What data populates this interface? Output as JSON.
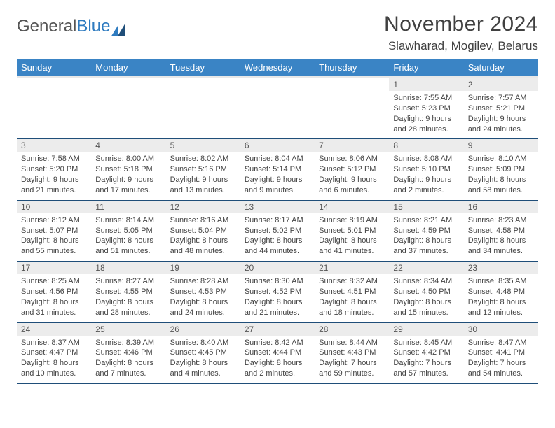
{
  "logo": {
    "text1": "General",
    "text2": "Blue"
  },
  "header": {
    "month": "November 2024",
    "location": "Slawharad, Mogilev, Belarus"
  },
  "colors": {
    "header_bg": "#3a84c5",
    "header_text": "#ffffff",
    "daynum_bg": "#ececec",
    "row_border": "#1f4e79",
    "thead_underline": "#e8e8e8",
    "body_text": "#444444",
    "page_bg": "#ffffff"
  },
  "typography": {
    "month_fontsize": 30,
    "location_fontsize": 17,
    "dayhead_fontsize": 13,
    "daynum_fontsize": 12,
    "cell_fontsize": 11
  },
  "calendar": {
    "type": "table",
    "columns": [
      "Sunday",
      "Monday",
      "Tuesday",
      "Wednesday",
      "Thursday",
      "Friday",
      "Saturday"
    ],
    "weeks": [
      [
        {
          "n": "",
          "sr": "",
          "ss": "",
          "dl": ""
        },
        {
          "n": "",
          "sr": "",
          "ss": "",
          "dl": ""
        },
        {
          "n": "",
          "sr": "",
          "ss": "",
          "dl": ""
        },
        {
          "n": "",
          "sr": "",
          "ss": "",
          "dl": ""
        },
        {
          "n": "",
          "sr": "",
          "ss": "",
          "dl": ""
        },
        {
          "n": "1",
          "sr": "Sunrise: 7:55 AM",
          "ss": "Sunset: 5:23 PM",
          "dl": "Daylight: 9 hours and 28 minutes."
        },
        {
          "n": "2",
          "sr": "Sunrise: 7:57 AM",
          "ss": "Sunset: 5:21 PM",
          "dl": "Daylight: 9 hours and 24 minutes."
        }
      ],
      [
        {
          "n": "3",
          "sr": "Sunrise: 7:58 AM",
          "ss": "Sunset: 5:20 PM",
          "dl": "Daylight: 9 hours and 21 minutes."
        },
        {
          "n": "4",
          "sr": "Sunrise: 8:00 AM",
          "ss": "Sunset: 5:18 PM",
          "dl": "Daylight: 9 hours and 17 minutes."
        },
        {
          "n": "5",
          "sr": "Sunrise: 8:02 AM",
          "ss": "Sunset: 5:16 PM",
          "dl": "Daylight: 9 hours and 13 minutes."
        },
        {
          "n": "6",
          "sr": "Sunrise: 8:04 AM",
          "ss": "Sunset: 5:14 PM",
          "dl": "Daylight: 9 hours and 9 minutes."
        },
        {
          "n": "7",
          "sr": "Sunrise: 8:06 AM",
          "ss": "Sunset: 5:12 PM",
          "dl": "Daylight: 9 hours and 6 minutes."
        },
        {
          "n": "8",
          "sr": "Sunrise: 8:08 AM",
          "ss": "Sunset: 5:10 PM",
          "dl": "Daylight: 9 hours and 2 minutes."
        },
        {
          "n": "9",
          "sr": "Sunrise: 8:10 AM",
          "ss": "Sunset: 5:09 PM",
          "dl": "Daylight: 8 hours and 58 minutes."
        }
      ],
      [
        {
          "n": "10",
          "sr": "Sunrise: 8:12 AM",
          "ss": "Sunset: 5:07 PM",
          "dl": "Daylight: 8 hours and 55 minutes."
        },
        {
          "n": "11",
          "sr": "Sunrise: 8:14 AM",
          "ss": "Sunset: 5:05 PM",
          "dl": "Daylight: 8 hours and 51 minutes."
        },
        {
          "n": "12",
          "sr": "Sunrise: 8:16 AM",
          "ss": "Sunset: 5:04 PM",
          "dl": "Daylight: 8 hours and 48 minutes."
        },
        {
          "n": "13",
          "sr": "Sunrise: 8:17 AM",
          "ss": "Sunset: 5:02 PM",
          "dl": "Daylight: 8 hours and 44 minutes."
        },
        {
          "n": "14",
          "sr": "Sunrise: 8:19 AM",
          "ss": "Sunset: 5:01 PM",
          "dl": "Daylight: 8 hours and 41 minutes."
        },
        {
          "n": "15",
          "sr": "Sunrise: 8:21 AM",
          "ss": "Sunset: 4:59 PM",
          "dl": "Daylight: 8 hours and 37 minutes."
        },
        {
          "n": "16",
          "sr": "Sunrise: 8:23 AM",
          "ss": "Sunset: 4:58 PM",
          "dl": "Daylight: 8 hours and 34 minutes."
        }
      ],
      [
        {
          "n": "17",
          "sr": "Sunrise: 8:25 AM",
          "ss": "Sunset: 4:56 PM",
          "dl": "Daylight: 8 hours and 31 minutes."
        },
        {
          "n": "18",
          "sr": "Sunrise: 8:27 AM",
          "ss": "Sunset: 4:55 PM",
          "dl": "Daylight: 8 hours and 28 minutes."
        },
        {
          "n": "19",
          "sr": "Sunrise: 8:28 AM",
          "ss": "Sunset: 4:53 PM",
          "dl": "Daylight: 8 hours and 24 minutes."
        },
        {
          "n": "20",
          "sr": "Sunrise: 8:30 AM",
          "ss": "Sunset: 4:52 PM",
          "dl": "Daylight: 8 hours and 21 minutes."
        },
        {
          "n": "21",
          "sr": "Sunrise: 8:32 AM",
          "ss": "Sunset: 4:51 PM",
          "dl": "Daylight: 8 hours and 18 minutes."
        },
        {
          "n": "22",
          "sr": "Sunrise: 8:34 AM",
          "ss": "Sunset: 4:50 PM",
          "dl": "Daylight: 8 hours and 15 minutes."
        },
        {
          "n": "23",
          "sr": "Sunrise: 8:35 AM",
          "ss": "Sunset: 4:48 PM",
          "dl": "Daylight: 8 hours and 12 minutes."
        }
      ],
      [
        {
          "n": "24",
          "sr": "Sunrise: 8:37 AM",
          "ss": "Sunset: 4:47 PM",
          "dl": "Daylight: 8 hours and 10 minutes."
        },
        {
          "n": "25",
          "sr": "Sunrise: 8:39 AM",
          "ss": "Sunset: 4:46 PM",
          "dl": "Daylight: 8 hours and 7 minutes."
        },
        {
          "n": "26",
          "sr": "Sunrise: 8:40 AM",
          "ss": "Sunset: 4:45 PM",
          "dl": "Daylight: 8 hours and 4 minutes."
        },
        {
          "n": "27",
          "sr": "Sunrise: 8:42 AM",
          "ss": "Sunset: 4:44 PM",
          "dl": "Daylight: 8 hours and 2 minutes."
        },
        {
          "n": "28",
          "sr": "Sunrise: 8:44 AM",
          "ss": "Sunset: 4:43 PM",
          "dl": "Daylight: 7 hours and 59 minutes."
        },
        {
          "n": "29",
          "sr": "Sunrise: 8:45 AM",
          "ss": "Sunset: 4:42 PM",
          "dl": "Daylight: 7 hours and 57 minutes."
        },
        {
          "n": "30",
          "sr": "Sunrise: 8:47 AM",
          "ss": "Sunset: 4:41 PM",
          "dl": "Daylight: 7 hours and 54 minutes."
        }
      ]
    ]
  }
}
